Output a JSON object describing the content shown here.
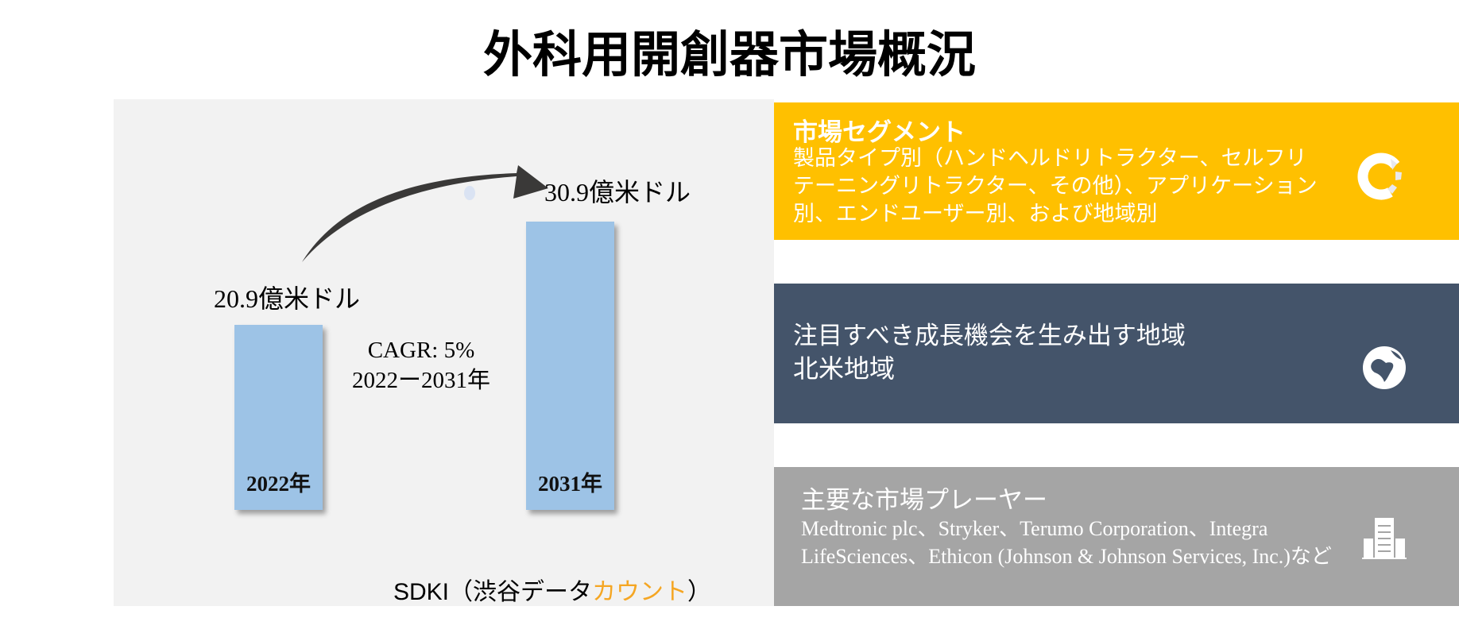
{
  "title": "外科用開創器市場概況",
  "chart_data": {
    "type": "bar",
    "categories": [
      "2022年",
      "2031年"
    ],
    "values": [
      20.9,
      30.9
    ],
    "value_labels": [
      "20.9億米ドル",
      "30.9億米ドル"
    ],
    "unit": "億米ドル",
    "annotation": {
      "cagr": "CAGR: 5%",
      "period": "2022ー2031年"
    },
    "ylim": [
      0,
      35
    ]
  },
  "source": {
    "prefix": "SDKI（渋谷データ",
    "highlight": "カウント",
    "suffix": "）"
  },
  "segments": {
    "heading": "市場セグメント",
    "body": "製品タイプ別（ハンドヘルドリトラクター、セルフリテーニングリトラクター、その他）、アプリケーション別、エンドユーザー別、および地域別",
    "icon": "donut-chart-icon",
    "color": "#ffc000"
  },
  "region": {
    "heading": "注目すべき成長機会を生み出す地域",
    "body": "北米地域",
    "icon": "globe-icon",
    "color": "#44546a"
  },
  "players": {
    "heading": "主要な市場プレーヤー",
    "body": "Medtronic plc、Stryker、Terumo Corporation、Integra LifeSciences、Ethicon (Johnson & Johnson Services, Inc.)など",
    "icon": "building-icon",
    "color": "#a5a5a5"
  }
}
